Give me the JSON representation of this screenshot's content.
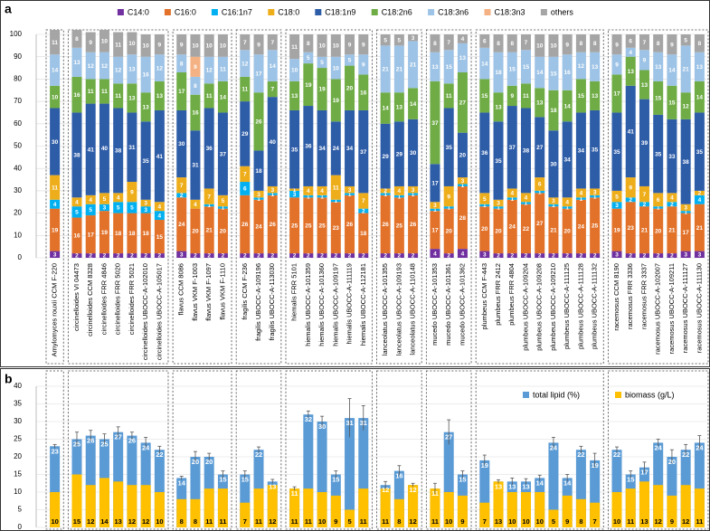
{
  "chart_data": [
    {
      "type": "stacked_bar",
      "panel_label": "a",
      "categories": [
        "Amylomyces rouxii CCM F-220",
        "circinelloides VI 04473",
        "circinelloides CCM 8328",
        "circinelloides FRR 4846",
        "circinelloides FRR 5020",
        "circinelloides FRR 5021",
        "circinelloides UBOCC-A-102010",
        "circinelloides UBOCC-A-105017",
        "flavus CCM 8086",
        "flavus VKM F-1003",
        "flavus VKM F-1097",
        "flavus VKM F-1110",
        "fragilis CCM F-236",
        "fragilis UBOCC-A-109196",
        "fragilis UBOCC-A-113030",
        "hiemalis FRR 5101",
        "hiemalis UBOCC-A-101359",
        "hiemalis UBOCC-A-101360",
        "hiemalis UBOCC-A-109197",
        "hiemalis UBOCC-A-111119",
        "hiemalis UBOCC-A-112181",
        "lanceolatus UBOCC-A-101355",
        "lanceolatus UBOCC-A-109193",
        "lanceolatus UBOCC-A-110148",
        "mucedo UBOCC-A-101353",
        "mucedo UBOCC-A-101361",
        "mucedo UBOCC-A-101362",
        "plumbeus CCM F-443",
        "plumbeus FRR 2412",
        "plumbeus FRR 4804",
        "plumbeus UBOCC-A-109204",
        "plumbeus UBOCC-A-109208",
        "plumbeus UBOCC-A-109210",
        "plumbeus UBOCC-A-111125",
        "plumbeus UBOCC-A-111128",
        "plumbeus UBOCC-A-111132",
        "racemosus CCM 8190",
        "racemosus FRR 3336",
        "racemosus FRR 3337",
        "racemosus UBOCC-A-102007",
        "racemosus UBOCC-A-109211",
        "racemosus UBOCC-A-111127",
        "racemosus UBOCC-A-111130"
      ],
      "series": [
        {
          "name": "C14:0",
          "color": "#7030a0",
          "values": [
            3,
            2,
            2,
            2,
            2,
            2,
            2,
            2,
            3,
            2,
            2,
            2,
            2,
            2,
            2,
            2,
            2,
            2,
            2,
            2,
            2,
            2,
            2,
            2,
            4,
            2,
            4,
            3,
            2,
            2,
            2,
            2,
            2,
            2,
            2,
            2,
            3,
            2,
            2,
            2,
            2,
            3,
            3
          ]
        },
        {
          "name": "C16:0",
          "color": "#e2722a",
          "values": [
            19,
            16,
            17,
            19,
            18,
            18,
            18,
            15,
            24,
            20,
            21,
            20,
            26,
            24,
            26,
            25,
            25,
            25,
            23,
            26,
            18,
            26,
            25,
            26,
            17,
            20,
            28,
            20,
            20,
            24,
            22,
            27,
            21,
            20,
            24,
            25,
            19,
            23,
            21,
            20,
            21,
            17,
            21
          ]
        },
        {
          "name": "C16:1n7",
          "color": "#00b0f0",
          "values": [
            4,
            5,
            5,
            3,
            5,
            5,
            3,
            4,
            2,
            0,
            1,
            1,
            6,
            1,
            1,
            3,
            1,
            1,
            1,
            1,
            2,
            1,
            1,
            1,
            1,
            1,
            1,
            1,
            1,
            1,
            1,
            1,
            1,
            1,
            1,
            1,
            3,
            2,
            2,
            1,
            2,
            1,
            4
          ]
        },
        {
          "name": "C18:0",
          "color": "#eeae1c",
          "values": [
            11,
            4,
            4,
            5,
            4,
            9,
            3,
            4,
            7,
            4,
            7,
            5,
            7,
            3,
            3,
            1,
            4,
            4,
            11,
            3,
            7,
            2,
            4,
            3,
            3,
            9,
            3,
            5,
            3,
            4,
            4,
            6,
            3,
            4,
            4,
            3,
            5,
            9,
            7,
            6,
            4,
            3,
            2
          ]
        },
        {
          "name": "C18:1n9",
          "color": "#2e5da8",
          "values": [
            30,
            38,
            41,
            40,
            38,
            31,
            35,
            41,
            30,
            31,
            36,
            37,
            29,
            18,
            40,
            35,
            36,
            34,
            24,
            34,
            37,
            29,
            29,
            30,
            17,
            35,
            20,
            36,
            35,
            37,
            38,
            27,
            30,
            34,
            34,
            35,
            35,
            41,
            39,
            35,
            33,
            38,
            35
          ]
        },
        {
          "name": "C18:2n6",
          "color": "#6fac46",
          "values": [
            10,
            16,
            11,
            11,
            11,
            13,
            13,
            13,
            17,
            16,
            11,
            14,
            11,
            26,
            7,
            13,
            19,
            19,
            19,
            20,
            16,
            14,
            13,
            14,
            37,
            11,
            27,
            15,
            13,
            9,
            11,
            13,
            18,
            14,
            15,
            13,
            17,
            13,
            13,
            15,
            15,
            12,
            14
          ]
        },
        {
          "name": "C18:3n6",
          "color": "#9dc3e6",
          "values": [
            14,
            13,
            12,
            12,
            12,
            13,
            16,
            12,
            8,
            8,
            12,
            11,
            12,
            17,
            14,
            10,
            5,
            5,
            10,
            5,
            9,
            21,
            21,
            21,
            13,
            15,
            13,
            14,
            18,
            15,
            15,
            14,
            15,
            16,
            12,
            13,
            9,
            4,
            9,
            13,
            14,
            21,
            13
          ]
        },
        {
          "name": "C18:3n3",
          "color": "#f4b183",
          "values": [
            0,
            0,
            0,
            0,
            0,
            0,
            0,
            0,
            0,
            9,
            0,
            0,
            0,
            0,
            0,
            0,
            0,
            0,
            0,
            0,
            0,
            0,
            0,
            0,
            0,
            0,
            0,
            0,
            0,
            0,
            0,
            0,
            0,
            0,
            0,
            0,
            0,
            0,
            0,
            0,
            0,
            0,
            0
          ]
        },
        {
          "name": "others",
          "color": "#a5a5a5",
          "values": [
            11,
            8,
            9,
            10,
            11,
            10,
            10,
            9,
            9,
            10,
            10,
            10,
            7,
            9,
            7,
            11,
            8,
            10,
            10,
            9,
            9,
            5,
            5,
            3,
            8,
            7,
            4,
            6,
            8,
            8,
            7,
            10,
            10,
            9,
            8,
            8,
            9,
            6,
            7,
            8,
            9,
            5,
            8
          ]
        }
      ],
      "ylim": [
        0,
        100
      ],
      "yticks": [
        0,
        10,
        20,
        30,
        40,
        50,
        60,
        70,
        80,
        90,
        100
      ],
      "grid": true,
      "legend": "top"
    },
    {
      "type": "overlay_bar",
      "panel_label": "b",
      "series": [
        {
          "name": "total lipid (%)",
          "color": "#5b9bd5",
          "values": [
            23,
            25,
            26,
            25,
            27,
            26,
            24,
            22,
            14,
            20,
            20,
            15,
            15,
            22,
            13,
            11,
            32,
            30,
            15,
            31,
            31,
            12,
            16,
            12,
            11,
            27,
            15,
            19,
            13,
            13,
            13,
            14,
            24,
            14,
            22,
            19,
            22,
            15,
            17,
            24,
            20,
            22,
            24
          ],
          "errors": [
            0.5,
            2,
            1.5,
            1.5,
            1.5,
            1,
            1.5,
            1,
            0.5,
            1.5,
            1,
            1,
            1,
            0.8,
            0.6,
            0.5,
            1,
            1.5,
            1,
            5.5,
            3.5,
            1,
            1.5,
            0.5,
            1.5,
            3.5,
            1,
            1.5,
            0.5,
            1,
            0.8,
            0.8,
            1.5,
            1,
            1,
            2,
            0.8,
            1,
            1.5,
            1,
            2,
            1.5,
            2
          ]
        },
        {
          "name": "biomass (g/L)",
          "color": "#ffc000",
          "values": [
            10,
            15,
            12,
            14,
            13,
            12,
            12,
            10,
            8,
            8,
            11,
            11,
            7,
            11,
            12,
            11,
            11,
            10,
            9,
            5,
            11,
            11,
            8,
            12,
            11,
            10,
            9,
            7,
            13,
            10,
            10,
            10,
            5,
            9,
            8,
            7,
            10,
            11,
            13,
            12,
            9,
            12,
            11
          ]
        }
      ],
      "ylim": [
        0,
        40
      ],
      "yticks": [
        0,
        5,
        10,
        15,
        20,
        25,
        30,
        35,
        40
      ],
      "grid": true,
      "legend": "upper right"
    }
  ]
}
